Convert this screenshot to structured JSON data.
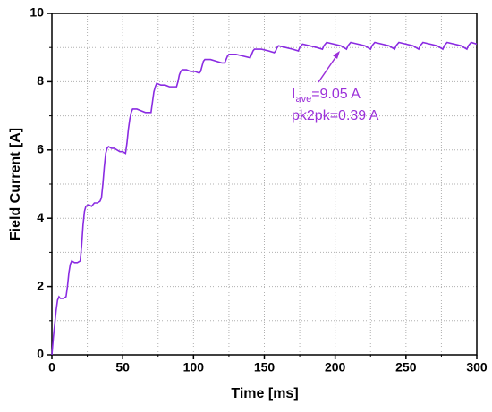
{
  "chart_data": {
    "type": "line",
    "xlabel": "Time [ms]",
    "ylabel": "Field Current [A]",
    "xlim": [
      0,
      300
    ],
    "ylim": [
      0,
      10
    ],
    "xticks": [
      0,
      50,
      100,
      150,
      200,
      250,
      300
    ],
    "yticks": [
      0,
      2,
      4,
      6,
      8,
      10
    ],
    "xminorticks": [
      25,
      75,
      125,
      175,
      225,
      275
    ],
    "yminorticks": [
      1,
      3,
      5,
      7,
      9
    ],
    "grid": true,
    "annotations": [
      {
        "parts": [
          "I",
          "ave",
          "=9.05 A"
        ]
      },
      {
        "text": "pk2pk=0.39 A"
      }
    ],
    "series": [
      {
        "color": "#8a2be2",
        "x": [
          0,
          1,
          2,
          3,
          4,
          5,
          6,
          8,
          10,
          11,
          12,
          13,
          14,
          16,
          18,
          20,
          21,
          22,
          23,
          24,
          26,
          28,
          30,
          32,
          34,
          35,
          36,
          37,
          38,
          39,
          40,
          42,
          44,
          46,
          48,
          50,
          52,
          53,
          54,
          55,
          56,
          57,
          60,
          63,
          66,
          69,
          70,
          71,
          72,
          73,
          74,
          77,
          80,
          83,
          86,
          88,
          89,
          90,
          91,
          92,
          95,
          98,
          101,
          104,
          105,
          106,
          107,
          108,
          112,
          116,
          120,
          122,
          123,
          124,
          125,
          130,
          135,
          140,
          141,
          142,
          143,
          148,
          153,
          157,
          158,
          159,
          160,
          165,
          170,
          174,
          175,
          176,
          177,
          182,
          187,
          191,
          192,
          193,
          194,
          199,
          204,
          208,
          209,
          210,
          211,
          216,
          221,
          225,
          226,
          227,
          228,
          233,
          238,
          242,
          243,
          244,
          245,
          250,
          255,
          259,
          260,
          261,
          262,
          267,
          272,
          276,
          277,
          278,
          279,
          284,
          289,
          293,
          294,
          295,
          296,
          300
        ],
        "values": [
          0,
          0.5,
          0.9,
          1.3,
          1.6,
          1.7,
          1.65,
          1.65,
          1.7,
          2.0,
          2.4,
          2.65,
          2.75,
          2.7,
          2.7,
          2.75,
          3.2,
          3.8,
          4.2,
          4.35,
          4.4,
          4.35,
          4.45,
          4.45,
          4.5,
          4.6,
          5.0,
          5.5,
          5.9,
          6.05,
          6.1,
          6.05,
          6.05,
          6.0,
          5.95,
          5.95,
          5.9,
          6.2,
          6.6,
          6.9,
          7.1,
          7.2,
          7.2,
          7.15,
          7.1,
          7.1,
          7.1,
          7.4,
          7.7,
          7.85,
          7.95,
          7.9,
          7.9,
          7.85,
          7.85,
          7.85,
          8.0,
          8.2,
          8.3,
          8.35,
          8.35,
          8.3,
          8.3,
          8.25,
          8.3,
          8.45,
          8.6,
          8.65,
          8.65,
          8.6,
          8.55,
          8.55,
          8.65,
          8.75,
          8.8,
          8.8,
          8.75,
          8.7,
          8.8,
          8.9,
          8.95,
          8.95,
          8.9,
          8.85,
          8.9,
          9.0,
          9.05,
          9.0,
          8.95,
          8.9,
          9.0,
          9.05,
          9.1,
          9.05,
          9.0,
          8.95,
          9.05,
          9.1,
          9.15,
          9.1,
          9.05,
          8.95,
          9.05,
          9.1,
          9.15,
          9.1,
          9.05,
          8.95,
          9.05,
          9.1,
          9.15,
          9.1,
          9.05,
          8.95,
          9.05,
          9.1,
          9.15,
          9.1,
          9.05,
          8.95,
          9.05,
          9.1,
          9.15,
          9.1,
          9.05,
          8.95,
          9.05,
          9.1,
          9.15,
          9.1,
          9.05,
          8.95,
          9.05,
          9.1,
          9.15,
          9.1
        ]
      }
    ]
  }
}
